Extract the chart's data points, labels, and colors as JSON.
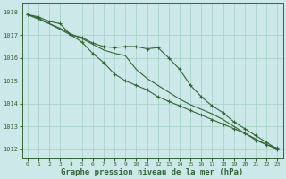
{
  "background_color": "#cce8e8",
  "grid_color": "#aad4cc",
  "line_color": "#336633",
  "xlabel": "Graphe pression niveau de la mer (hPa)",
  "xlabel_fontsize": 6.5,
  "ylim": [
    1011.6,
    1018.4
  ],
  "xlim": [
    -0.5,
    23.5
  ],
  "yticks": [
    1012,
    1013,
    1014,
    1015,
    1016,
    1017,
    1018
  ],
  "xticks": [
    0,
    1,
    2,
    3,
    4,
    5,
    6,
    7,
    8,
    9,
    10,
    11,
    12,
    13,
    14,
    15,
    16,
    17,
    18,
    19,
    20,
    21,
    22,
    23
  ],
  "series1_x": [
    0,
    1,
    2,
    3,
    4,
    5,
    6,
    7,
    8,
    9,
    10,
    11,
    12,
    13,
    14,
    15,
    16,
    17,
    18,
    19,
    20,
    21,
    22,
    23
  ],
  "series1_y": [
    1017.9,
    1017.8,
    1017.6,
    1017.5,
    1017.0,
    1016.9,
    1016.65,
    1016.5,
    1016.45,
    1016.5,
    1016.5,
    1016.4,
    1016.45,
    1016.0,
    1015.5,
    1014.8,
    1014.3,
    1013.9,
    1013.6,
    1013.2,
    1012.9,
    1012.6,
    1012.3,
    1012.0
  ],
  "series2_x": [
    0,
    1,
    2,
    3,
    4,
    5,
    6,
    7,
    8,
    9,
    10,
    11,
    12,
    13,
    14,
    15,
    16,
    17,
    18,
    19,
    20,
    21,
    22,
    23
  ],
  "series2_y": [
    1017.9,
    1017.7,
    1017.5,
    1017.3,
    1017.05,
    1016.85,
    1016.6,
    1016.35,
    1016.2,
    1016.1,
    1015.5,
    1015.1,
    1014.8,
    1014.5,
    1014.2,
    1013.95,
    1013.75,
    1013.55,
    1013.3,
    1013.0,
    1012.7,
    1012.45,
    1012.2,
    1012.0
  ],
  "series3_x": [
    0,
    1,
    4,
    5,
    6,
    7,
    8,
    9,
    10,
    11,
    12,
    13,
    14,
    15,
    16,
    17,
    18,
    19,
    20,
    21,
    22,
    23
  ],
  "series3_y": [
    1017.9,
    1017.75,
    1017.0,
    1016.7,
    1016.2,
    1015.8,
    1015.3,
    1015.0,
    1014.8,
    1014.6,
    1014.3,
    1014.1,
    1013.9,
    1013.7,
    1013.5,
    1013.3,
    1013.1,
    1012.9,
    1012.7,
    1012.4,
    1012.2,
    1012.05
  ]
}
